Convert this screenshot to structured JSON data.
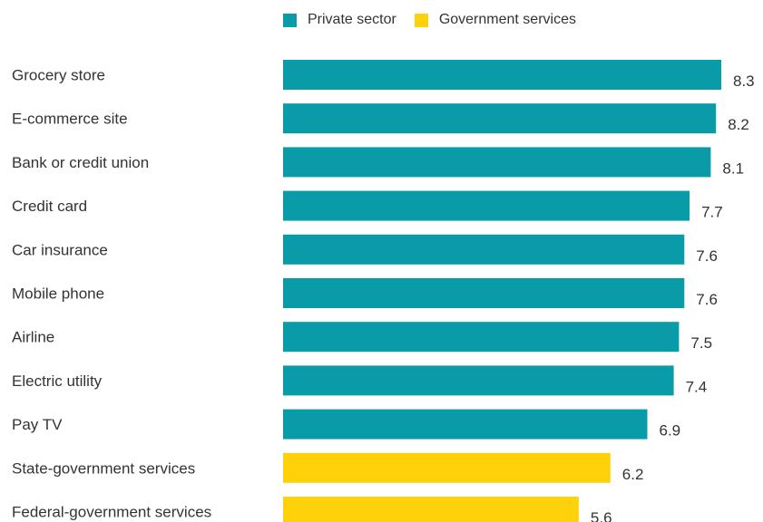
{
  "chart_data": {
    "type": "bar",
    "orientation": "horizontal",
    "categories": [
      "Grocery store",
      "E-commerce site",
      "Bank or credit union",
      "Credit card",
      "Car insurance",
      "Mobile phone",
      "Airline",
      "Electric utility",
      "Pay TV",
      "State-government services",
      "Federal-government services"
    ],
    "values": [
      8.3,
      8.2,
      8.1,
      7.7,
      7.6,
      7.6,
      7.5,
      7.4,
      6.9,
      6.2,
      5.6
    ],
    "value_labels": [
      "8.3",
      "8.2",
      "8.1",
      "7.7",
      "7.6",
      "7.6",
      "7.5",
      "7.4",
      "6.9",
      "6.2",
      "5.6"
    ],
    "groups": [
      "Private sector",
      "Private sector",
      "Private sector",
      "Private sector",
      "Private sector",
      "Private sector",
      "Private sector",
      "Private sector",
      "Private sector",
      "Government services",
      "Government services"
    ],
    "legend": [
      {
        "name": "Private sector",
        "color": "#0A9BA8"
      },
      {
        "name": "Government services",
        "color": "#FFD10A"
      }
    ],
    "legend_position": "top",
    "xlim": [
      0,
      8.3
    ],
    "grid": false,
    "title": "",
    "xlabel": "",
    "ylabel": ""
  }
}
